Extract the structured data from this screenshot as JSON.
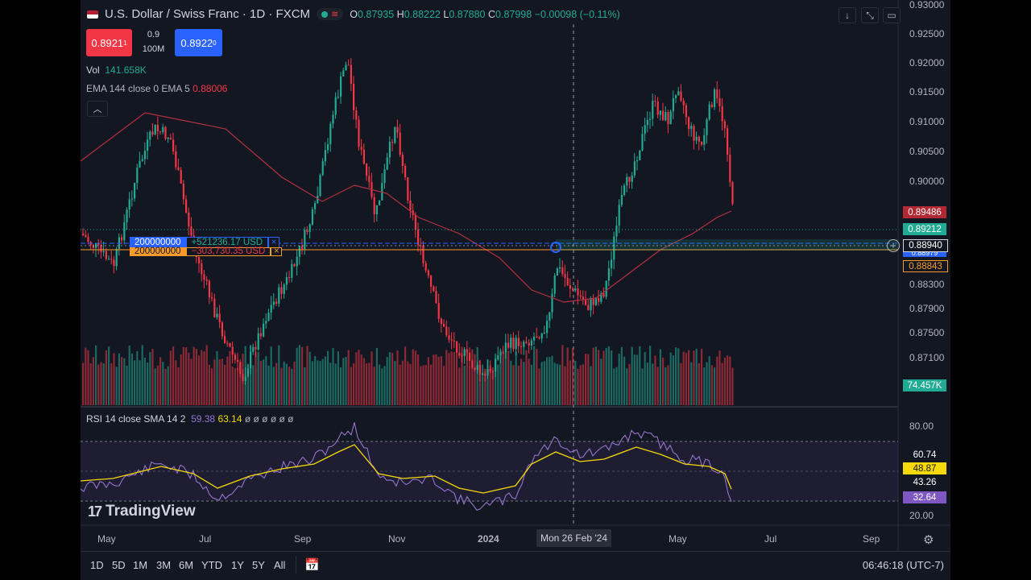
{
  "header": {
    "symbol": "U.S. Dollar / Swiss Franc · 1D · FXCM",
    "open_label": "O",
    "open": "0.87935",
    "high_label": "H",
    "high": "0.88222",
    "low_label": "L",
    "low": "0.87880",
    "close_label": "C",
    "close": "0.87998",
    "change": "−0.00098 (−0.11%)"
  },
  "trade": {
    "sell_price": "0.8921",
    "sell_sup": "1",
    "buy_price": "0.8922",
    "buy_sup": "0",
    "spread": "0.9",
    "quantity": "100M"
  },
  "legends": {
    "vol_label": "Vol",
    "vol_value": "141.658K",
    "ema_label": "EMA 144 close 0 EMA 5",
    "ema_value": "0.88006",
    "rsi_label": "RSI 14 close SMA 14 2",
    "rsi_value": "59.38",
    "rsi_sma_value": "63.14",
    "rsi_extra": "ø ø ø ø ø ø"
  },
  "price_axis": [
    "0.93000",
    "0.92500",
    "0.92000",
    "0.91500",
    "0.91000",
    "0.90500",
    "0.90000",
    "0.88300",
    "0.87900",
    "0.87500",
    "0.87100"
  ],
  "price_tags": {
    "ema_tag": "0.89486",
    "last_tag": "0.89212",
    "cursor_tag": "0.88940",
    "blue_tag": "0.88979",
    "orange_tag": "0.88843",
    "volume_tag": "74.457K"
  },
  "orders": {
    "long_qty": "200000000",
    "long_pnl": "+521236.17 USD",
    "short_qty": "200000000",
    "short_pnl": "−303,730.35 USD"
  },
  "rsi_axis": [
    "80.00",
    "20.00"
  ],
  "rsi_tags": {
    "t1": "60.74",
    "t2": "48.87",
    "t3": "43.26",
    "t4": "32.64"
  },
  "time_axis": [
    "May",
    "Jul",
    "Sep",
    "Nov",
    "2024",
    "May",
    "Jul",
    "Sep"
  ],
  "time_tooltip": "Mon 26 Feb '24",
  "brand": "TradingView",
  "timeframes": [
    "1D",
    "5D",
    "1M",
    "3M",
    "6M",
    "YTD",
    "1Y",
    "5Y",
    "All"
  ],
  "clock": "06:46:18 (UTC-7)",
  "colors": {
    "bg": "#131722",
    "up": "#22ab94",
    "down": "#f23645",
    "ema": "#b33043",
    "rsi": "#9575cd",
    "rsi_sma": "#f5d90a",
    "buy": "#2962ff"
  },
  "icons": [
    "download-icon",
    "fullscreen-icon",
    "maximize-icon",
    "chevron-up-icon",
    "calendar-range-icon",
    "gear-icon",
    "crosshair-plus-icon",
    "tradingview-logo-icon"
  ]
}
